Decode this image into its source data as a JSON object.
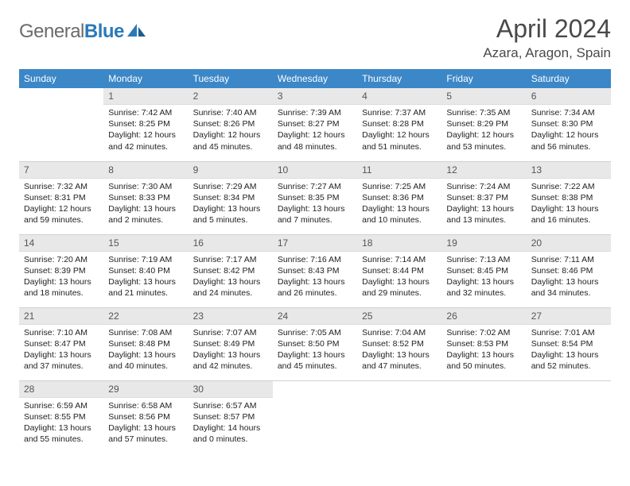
{
  "logo": {
    "word1": "General",
    "word2": "Blue",
    "color_gray": "#6b6b6b",
    "color_blue": "#2a7ab9"
  },
  "title": "April 2024",
  "location": "Azara, Aragon, Spain",
  "header_bg": "#3b87c8",
  "header_fg": "#ffffff",
  "daynum_bg": "#e8e8e8",
  "border_color": "#d0d0d0",
  "weekdays": [
    "Sunday",
    "Monday",
    "Tuesday",
    "Wednesday",
    "Thursday",
    "Friday",
    "Saturday"
  ],
  "weeks": [
    [
      null,
      {
        "n": "1",
        "sr": "7:42 AM",
        "ss": "8:25 PM",
        "dl": "12 hours and 42 minutes."
      },
      {
        "n": "2",
        "sr": "7:40 AM",
        "ss": "8:26 PM",
        "dl": "12 hours and 45 minutes."
      },
      {
        "n": "3",
        "sr": "7:39 AM",
        "ss": "8:27 PM",
        "dl": "12 hours and 48 minutes."
      },
      {
        "n": "4",
        "sr": "7:37 AM",
        "ss": "8:28 PM",
        "dl": "12 hours and 51 minutes."
      },
      {
        "n": "5",
        "sr": "7:35 AM",
        "ss": "8:29 PM",
        "dl": "12 hours and 53 minutes."
      },
      {
        "n": "6",
        "sr": "7:34 AM",
        "ss": "8:30 PM",
        "dl": "12 hours and 56 minutes."
      }
    ],
    [
      {
        "n": "7",
        "sr": "7:32 AM",
        "ss": "8:31 PM",
        "dl": "12 hours and 59 minutes."
      },
      {
        "n": "8",
        "sr": "7:30 AM",
        "ss": "8:33 PM",
        "dl": "13 hours and 2 minutes."
      },
      {
        "n": "9",
        "sr": "7:29 AM",
        "ss": "8:34 PM",
        "dl": "13 hours and 5 minutes."
      },
      {
        "n": "10",
        "sr": "7:27 AM",
        "ss": "8:35 PM",
        "dl": "13 hours and 7 minutes."
      },
      {
        "n": "11",
        "sr": "7:25 AM",
        "ss": "8:36 PM",
        "dl": "13 hours and 10 minutes."
      },
      {
        "n": "12",
        "sr": "7:24 AM",
        "ss": "8:37 PM",
        "dl": "13 hours and 13 minutes."
      },
      {
        "n": "13",
        "sr": "7:22 AM",
        "ss": "8:38 PM",
        "dl": "13 hours and 16 minutes."
      }
    ],
    [
      {
        "n": "14",
        "sr": "7:20 AM",
        "ss": "8:39 PM",
        "dl": "13 hours and 18 minutes."
      },
      {
        "n": "15",
        "sr": "7:19 AM",
        "ss": "8:40 PM",
        "dl": "13 hours and 21 minutes."
      },
      {
        "n": "16",
        "sr": "7:17 AM",
        "ss": "8:42 PM",
        "dl": "13 hours and 24 minutes."
      },
      {
        "n": "17",
        "sr": "7:16 AM",
        "ss": "8:43 PM",
        "dl": "13 hours and 26 minutes."
      },
      {
        "n": "18",
        "sr": "7:14 AM",
        "ss": "8:44 PM",
        "dl": "13 hours and 29 minutes."
      },
      {
        "n": "19",
        "sr": "7:13 AM",
        "ss": "8:45 PM",
        "dl": "13 hours and 32 minutes."
      },
      {
        "n": "20",
        "sr": "7:11 AM",
        "ss": "8:46 PM",
        "dl": "13 hours and 34 minutes."
      }
    ],
    [
      {
        "n": "21",
        "sr": "7:10 AM",
        "ss": "8:47 PM",
        "dl": "13 hours and 37 minutes."
      },
      {
        "n": "22",
        "sr": "7:08 AM",
        "ss": "8:48 PM",
        "dl": "13 hours and 40 minutes."
      },
      {
        "n": "23",
        "sr": "7:07 AM",
        "ss": "8:49 PM",
        "dl": "13 hours and 42 minutes."
      },
      {
        "n": "24",
        "sr": "7:05 AM",
        "ss": "8:50 PM",
        "dl": "13 hours and 45 minutes."
      },
      {
        "n": "25",
        "sr": "7:04 AM",
        "ss": "8:52 PM",
        "dl": "13 hours and 47 minutes."
      },
      {
        "n": "26",
        "sr": "7:02 AM",
        "ss": "8:53 PM",
        "dl": "13 hours and 50 minutes."
      },
      {
        "n": "27",
        "sr": "7:01 AM",
        "ss": "8:54 PM",
        "dl": "13 hours and 52 minutes."
      }
    ],
    [
      {
        "n": "28",
        "sr": "6:59 AM",
        "ss": "8:55 PM",
        "dl": "13 hours and 55 minutes."
      },
      {
        "n": "29",
        "sr": "6:58 AM",
        "ss": "8:56 PM",
        "dl": "13 hours and 57 minutes."
      },
      {
        "n": "30",
        "sr": "6:57 AM",
        "ss": "8:57 PM",
        "dl": "14 hours and 0 minutes."
      },
      null,
      null,
      null,
      null
    ]
  ],
  "labels": {
    "sunrise": "Sunrise:",
    "sunset": "Sunset:",
    "daylight": "Daylight:"
  }
}
